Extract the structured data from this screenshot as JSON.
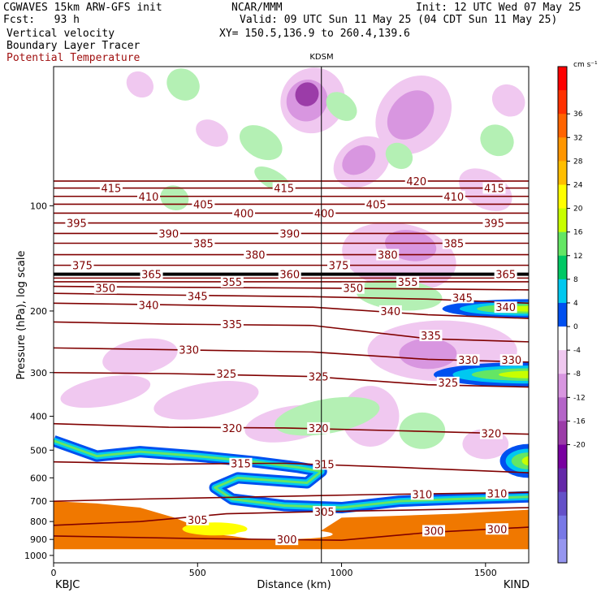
{
  "header": {
    "line1_left": "CGWAVES 15km ARW-GFS init",
    "line1_center": "NCAR/MMM",
    "line1_right": "Init: 12 UTC Wed 07 May 25",
    "line2_left": "Fcst:   93 h",
    "line2_right": "Valid: 09 UTC Sun 11 May 25 (04 CDT Sun 11 May 25)",
    "line3_left": "Vertical velocity",
    "line3_right": "XY= 150.5,136.9 to 260.4,139.6",
    "line4_left": "Boundary Layer Tracer",
    "line5_left": "Potential Temperature"
  },
  "colors": {
    "theta": "#800000",
    "tracer": "#f07800",
    "neg_light": "#f0c8f0",
    "neg_mid": "#d896e0",
    "neg_dark": "#9b3ca8",
    "pos_light": "#b4f0b4",
    "pos_mid": "#64e664",
    "cyan": "#00c8f0",
    "blue": "#0050f0"
  },
  "chart_data": {
    "type": "heatmap",
    "title": "KDSM",
    "xlabel": "Distance (km)",
    "ylabel": "Pressure (hPa), log scale",
    "xlim": [
      0,
      1650
    ],
    "ylim": [
      1050,
      40
    ],
    "y_log": true,
    "x_ticks": [
      0,
      500,
      1000,
      1500
    ],
    "y_ticks": [
      100,
      200,
      300,
      400,
      500,
      600,
      700,
      800,
      900,
      1000
    ],
    "x_end_labels": [
      "KBJC",
      "KIND"
    ],
    "marker_x": 930,
    "colorbar": {
      "unit": "cm s⁻¹",
      "ticks": [
        36,
        32,
        28,
        24,
        20,
        16,
        12,
        8,
        4,
        0,
        -4,
        -8,
        -12,
        -16,
        -20
      ],
      "colors": [
        "#ff0000",
        "#ff3000",
        "#ff6400",
        "#ff9600",
        "#ffbe00",
        "#ffff00",
        "#c8ff00",
        "#64e664",
        "#00c864",
        "#00c8f0",
        "#0050f0",
        "#ffffff",
        "#f0c8f0",
        "#d896e0",
        "#b464c8",
        "#9b3ca8",
        "#7800a0",
        "#6428a8",
        "#6450c8",
        "#7878e6",
        "#9696f0"
      ]
    },
    "theta_contours": [
      {
        "value": 300,
        "x": [
          0,
          500,
          1000,
          1300,
          1650
        ],
        "p": [
          880,
          895,
          905,
          860,
          830
        ]
      },
      {
        "value": 305,
        "x": [
          0,
          300,
          600,
          900,
          1300,
          1650
        ],
        "p": [
          820,
          800,
          760,
          750,
          740,
          730
        ]
      },
      {
        "value": 310,
        "x": [
          0,
          300,
          700,
          1100,
          1400,
          1650
        ],
        "p": [
          700,
          690,
          680,
          670,
          665,
          660
        ]
      },
      {
        "value": 315,
        "x": [
          0,
          400,
          800,
          1200,
          1650
        ],
        "p": [
          540,
          548,
          545,
          560,
          580
        ]
      },
      {
        "value": 320,
        "x": [
          0,
          400,
          800,
          1200,
          1650
        ],
        "p": [
          420,
          430,
          432,
          440,
          450
        ]
      },
      {
        "value": 325,
        "x": [
          0,
          400,
          900,
          1300,
          1650
        ],
        "p": [
          300,
          302,
          308,
          325,
          330
        ]
      },
      {
        "value": 330,
        "x": [
          0,
          400,
          900,
          1300,
          1650
        ],
        "p": [
          255,
          258,
          262,
          275,
          280
        ]
      },
      {
        "value": 335,
        "x": [
          0,
          400,
          900,
          1300,
          1650
        ],
        "p": [
          215,
          218,
          220,
          240,
          245
        ]
      },
      {
        "value": 340,
        "x": [
          0,
          400,
          900,
          1300,
          1650
        ],
        "p": [
          190,
          192,
          195,
          205,
          210
        ]
      },
      {
        "value": 345,
        "x": [
          0,
          400,
          900,
          1300,
          1650
        ],
        "p": [
          178,
          180,
          182,
          185,
          190
        ]
      },
      {
        "value": 350,
        "x": [
          0,
          400,
          900,
          1300,
          1650
        ],
        "p": [
          170,
          171,
          172,
          173,
          174
        ]
      },
      {
        "value": 355,
        "x": [
          0,
          1650
        ],
        "p": [
          165,
          165
        ]
      },
      {
        "value": 360,
        "x": [
          0,
          1650
        ],
        "p": [
          161,
          161
        ]
      },
      {
        "value": 365,
        "x": [
          0,
          1650
        ],
        "p": [
          157,
          157
        ]
      },
      {
        "value": 375,
        "x": [
          0,
          1650
        ],
        "p": [
          148,
          148
        ]
      },
      {
        "value": 380,
        "x": [
          0,
          1650
        ],
        "p": [
          138,
          138
        ]
      },
      {
        "value": 385,
        "x": [
          0,
          1650
        ],
        "p": [
          128,
          128
        ]
      },
      {
        "value": 390,
        "x": [
          0,
          1650
        ],
        "p": [
          120,
          120
        ]
      },
      {
        "value": 395,
        "x": [
          0,
          1650
        ],
        "p": [
          112,
          112
        ]
      },
      {
        "value": 400,
        "x": [
          0,
          1650
        ],
        "p": [
          105,
          105
        ]
      },
      {
        "value": 405,
        "x": [
          0,
          1650
        ],
        "p": [
          99,
          99
        ]
      },
      {
        "value": 410,
        "x": [
          0,
          1650
        ],
        "p": [
          94,
          94
        ]
      },
      {
        "value": 415,
        "x": [
          0,
          1650
        ],
        "p": [
          89,
          89
        ]
      },
      {
        "value": 420,
        "x": [
          0,
          1650
        ],
        "p": [
          85,
          85
        ]
      }
    ],
    "theta_labels": [
      {
        "text": "415",
        "x": 200,
        "p": 89
      },
      {
        "text": "410",
        "x": 330,
        "p": 94
      },
      {
        "text": "405",
        "x": 520,
        "p": 99
      },
      {
        "text": "400",
        "x": 660,
        "p": 105
      },
      {
        "text": "395",
        "x": 80,
        "p": 112
      },
      {
        "text": "390",
        "x": 400,
        "p": 120
      },
      {
        "text": "385",
        "x": 520,
        "p": 128
      },
      {
        "text": "380",
        "x": 700,
        "p": 138
      },
      {
        "text": "375",
        "x": 100,
        "p": 148
      },
      {
        "text": "365",
        "x": 340,
        "p": 157
      },
      {
        "text": "360",
        "x": 820,
        "p": 157
      },
      {
        "text": "355",
        "x": 620,
        "p": 165
      },
      {
        "text": "350",
        "x": 180,
        "p": 172
      },
      {
        "text": "345",
        "x": 500,
        "p": 181
      },
      {
        "text": "340",
        "x": 330,
        "p": 192
      },
      {
        "text": "335",
        "x": 620,
        "p": 218
      },
      {
        "text": "330",
        "x": 470,
        "p": 258
      },
      {
        "text": "325",
        "x": 600,
        "p": 302
      },
      {
        "text": "320",
        "x": 620,
        "p": 432
      },
      {
        "text": "315",
        "x": 650,
        "p": 546
      },
      {
        "text": "310",
        "x": 1280,
        "p": 668
      },
      {
        "text": "305",
        "x": 500,
        "p": 790
      },
      {
        "text": "300",
        "x": 810,
        "p": 900
      },
      {
        "text": "415",
        "x": 800,
        "p": 89
      },
      {
        "text": "400",
        "x": 940,
        "p": 105
      },
      {
        "text": "390",
        "x": 820,
        "p": 120
      },
      {
        "text": "375",
        "x": 990,
        "p": 148
      },
      {
        "text": "350",
        "x": 1040,
        "p": 172
      },
      {
        "text": "325",
        "x": 920,
        "p": 308
      },
      {
        "text": "320",
        "x": 920,
        "p": 432
      },
      {
        "text": "315",
        "x": 940,
        "p": 548
      },
      {
        "text": "305",
        "x": 940,
        "p": 750
      },
      {
        "text": "420",
        "x": 1260,
        "p": 85
      },
      {
        "text": "410",
        "x": 1390,
        "p": 94
      },
      {
        "text": "405",
        "x": 1120,
        "p": 99
      },
      {
        "text": "395",
        "x": 1530,
        "p": 112
      },
      {
        "text": "385",
        "x": 1390,
        "p": 128
      },
      {
        "text": "380",
        "x": 1160,
        "p": 138
      },
      {
        "text": "365",
        "x": 1570,
        "p": 157
      },
      {
        "text": "355",
        "x": 1230,
        "p": 165
      },
      {
        "text": "345",
        "x": 1420,
        "p": 183
      },
      {
        "text": "340",
        "x": 1170,
        "p": 200
      },
      {
        "text": "335",
        "x": 1310,
        "p": 235
      },
      {
        "text": "330",
        "x": 1440,
        "p": 276
      },
      {
        "text": "325",
        "x": 1370,
        "p": 320
      },
      {
        "text": "320",
        "x": 1520,
        "p": 448
      },
      {
        "text": "310",
        "x": 1540,
        "p": 664
      },
      {
        "text": "300",
        "x": 1320,
        "p": 850
      },
      {
        "text": "300",
        "x": 1540,
        "p": 840
      },
      {
        "text": "340",
        "x": 1570,
        "p": 195
      },
      {
        "text": "330",
        "x": 1590,
        "p": 276
      },
      {
        "text": "415",
        "x": 1530,
        "p": 89
      }
    ],
    "vv_blobs": [
      {
        "kind": "neg_light",
        "x": 900,
        "p": 50,
        "rx": 110,
        "pr": 0.22,
        "rot": 35
      },
      {
        "kind": "neg_mid",
        "x": 880,
        "p": 50,
        "rx": 70,
        "pr": 0.14,
        "rot": 35
      },
      {
        "kind": "neg_dark",
        "x": 880,
        "p": 48,
        "rx": 40,
        "pr": 0.08,
        "rot": 35
      },
      {
        "kind": "neg_light",
        "x": 1250,
        "p": 55,
        "rx": 120,
        "pr": 0.28,
        "rot": 40
      },
      {
        "kind": "neg_mid",
        "x": 1240,
        "p": 55,
        "rx": 70,
        "pr": 0.18,
        "rot": 40
      },
      {
        "kind": "neg_light",
        "x": 1070,
        "p": 75,
        "rx": 80,
        "pr": 0.2,
        "rot": 55
      },
      {
        "kind": "neg_mid",
        "x": 1060,
        "p": 74,
        "rx": 45,
        "pr": 0.12,
        "rot": 55
      },
      {
        "kind": "neg_light",
        "x": 550,
        "p": 62,
        "rx": 60,
        "pr": 0.08,
        "rot": 30
      },
      {
        "kind": "neg_light",
        "x": 300,
        "p": 45,
        "rx": 50,
        "pr": 0.08,
        "rot": 40
      },
      {
        "kind": "neg_light",
        "x": 1500,
        "p": 90,
        "rx": 100,
        "pr": 0.12,
        "rot": 30
      },
      {
        "kind": "neg_light",
        "x": 1580,
        "p": 50,
        "rx": 60,
        "pr": 0.1,
        "rot": 40
      },
      {
        "kind": "pos_light",
        "x": 450,
        "p": 45,
        "rx": 60,
        "pr": 0.1,
        "rot": 40
      },
      {
        "kind": "pos_light",
        "x": 720,
        "p": 66,
        "rx": 80,
        "pr": 0.1,
        "rot": 30
      },
      {
        "kind": "pos_light",
        "x": 1000,
        "p": 52,
        "rx": 60,
        "pr": 0.08,
        "rot": 40
      },
      {
        "kind": "pos_light",
        "x": 1540,
        "p": 65,
        "rx": 60,
        "pr": 0.1,
        "rot": 30
      },
      {
        "kind": "pos_light",
        "x": 420,
        "p": 95,
        "rx": 50,
        "pr": 0.08,
        "rot": 20
      },
      {
        "kind": "pos_light",
        "x": 760,
        "p": 84,
        "rx": 70,
        "pr": 0.06,
        "rot": 30
      },
      {
        "kind": "pos_light",
        "x": 1200,
        "p": 72,
        "rx": 50,
        "pr": 0.08,
        "rot": 40
      },
      {
        "kind": "neg_light",
        "x": 1200,
        "p": 140,
        "rx": 200,
        "pr": 0.22,
        "rot": 10
      },
      {
        "kind": "neg_mid",
        "x": 1240,
        "p": 130,
        "rx": 90,
        "pr": 0.1,
        "rot": 10
      },
      {
        "kind": "pos_light",
        "x": 1200,
        "p": 180,
        "rx": 150,
        "pr": 0.1,
        "rot": 5
      },
      {
        "kind": "neg_light",
        "x": 1350,
        "p": 260,
        "rx": 260,
        "pr": 0.2,
        "rot": 0
      },
      {
        "kind": "neg_mid",
        "x": 1300,
        "p": 265,
        "rx": 100,
        "pr": 0.1,
        "rot": 0
      },
      {
        "kind": "neg_light",
        "x": 300,
        "p": 270,
        "rx": 60,
        "pr": 0.25,
        "rot": 80
      },
      {
        "kind": "neg_light",
        "x": 180,
        "p": 340,
        "rx": 50,
        "pr": 0.3,
        "rot": 80
      },
      {
        "kind": "neg_light",
        "x": 530,
        "p": 360,
        "rx": 60,
        "pr": 0.35,
        "rot": 80
      },
      {
        "kind": "neg_light",
        "x": 820,
        "p": 420,
        "rx": 60,
        "pr": 0.3,
        "rot": 80
      },
      {
        "kind": "neg_light",
        "x": 1100,
        "p": 400,
        "rx": 100,
        "pr": 0.2,
        "rot": 0
      },
      {
        "kind": "pos_light",
        "x": 950,
        "p": 400,
        "rx": 60,
        "pr": 0.35,
        "rot": 80
      },
      {
        "kind": "pos_light",
        "x": 1280,
        "p": 440,
        "rx": 80,
        "pr": 0.12,
        "rot": 0
      },
      {
        "kind": "neg_light",
        "x": 1500,
        "p": 480,
        "rx": 80,
        "pr": 0.1,
        "rot": 0
      }
    ],
    "strong_regions": [
      {
        "name": "east-upper",
        "x0": 1350,
        "x1": 1650,
        "p0": 185,
        "p1": 210
      },
      {
        "name": "east-mid",
        "x0": 1320,
        "x1": 1650,
        "p0": 280,
        "p1": 330
      },
      {
        "name": "east-low",
        "x0": 1550,
        "x1": 1650,
        "p0": 480,
        "p1": 600
      }
    ],
    "annotations": [
      {
        "text": "KBJC",
        "position": "bottom-left"
      },
      {
        "text": "KIND",
        "position": "bottom-right"
      }
    ]
  }
}
